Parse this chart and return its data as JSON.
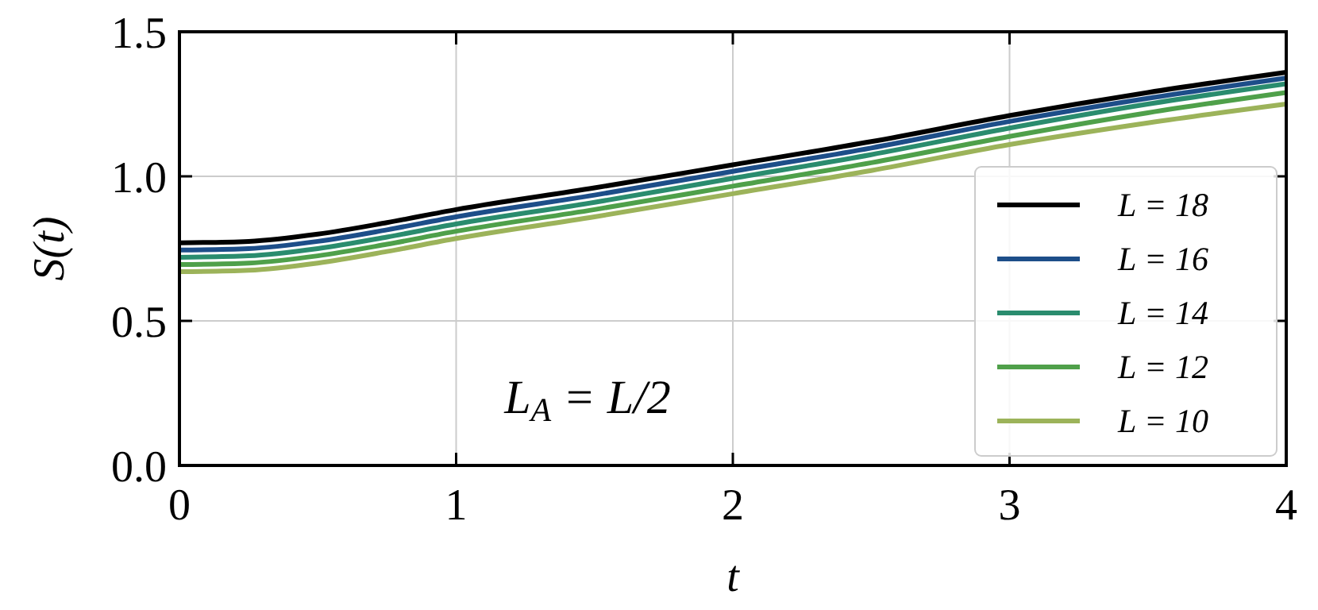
{
  "chart_data": {
    "type": "line",
    "xlabel": "t",
    "ylabel": "S(t)",
    "x": [
      0,
      0.25,
      0.5,
      0.75,
      1,
      1.5,
      2,
      2.5,
      3,
      3.5,
      4
    ],
    "series": [
      {
        "name": "L = 18",
        "color": "#000000",
        "values": [
          0.77,
          0.775,
          0.8,
          0.84,
          0.885,
          0.96,
          1.04,
          1.12,
          1.21,
          1.29,
          1.36
        ]
      },
      {
        "name": "L = 16",
        "color": "#1d4e89",
        "values": [
          0.745,
          0.75,
          0.775,
          0.815,
          0.86,
          0.935,
          1.017,
          1.098,
          1.19,
          1.27,
          1.34
        ]
      },
      {
        "name": "L = 14",
        "color": "#2a8c6e",
        "values": [
          0.72,
          0.725,
          0.75,
          0.79,
          0.835,
          0.91,
          0.993,
          1.075,
          1.167,
          1.25,
          1.32
        ]
      },
      {
        "name": "L = 12",
        "color": "#4fa04a",
        "values": [
          0.695,
          0.7,
          0.725,
          0.765,
          0.81,
          0.885,
          0.966,
          1.047,
          1.138,
          1.22,
          1.29
        ]
      },
      {
        "name": "L = 10",
        "color": "#9cb35a",
        "values": [
          0.67,
          0.675,
          0.7,
          0.74,
          0.785,
          0.86,
          0.94,
          1.02,
          1.11,
          1.185,
          1.25
        ]
      }
    ],
    "xlim": [
      0,
      4
    ],
    "xticks": [
      0,
      1,
      2,
      3,
      4
    ],
    "ylim": [
      0,
      1.5
    ],
    "yticks": [
      {
        "value": 0,
        "label": "0.0"
      },
      {
        "value": 0.5,
        "label": "0.5"
      },
      {
        "value": 1,
        "label": "1.0"
      },
      {
        "value": 1.5,
        "label": "1.5"
      }
    ],
    "grid": true,
    "legend": "bottom right",
    "line_style": "solid",
    "marker": "none",
    "annotations": [
      "L$_{A}$ = L/2"
    ]
  }
}
